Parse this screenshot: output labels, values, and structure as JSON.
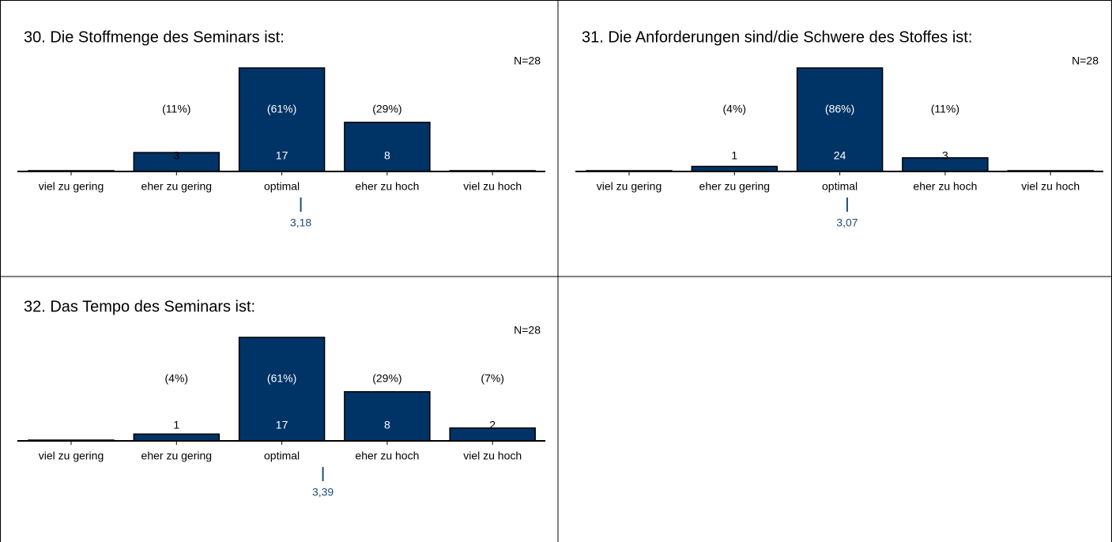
{
  "chart_data": [
    {
      "type": "bar",
      "title": "30. Die Stoffmenge des Seminars ist:",
      "annotation": "N=28",
      "categories": [
        "viel zu gering",
        "eher zu gering",
        "optimal",
        "eher zu hoch",
        "viel zu hoch"
      ],
      "values": [
        0,
        3,
        17,
        8,
        0
      ],
      "percent_labels": [
        null,
        "(11%)",
        "(61%)",
        "(29%)",
        null
      ],
      "mean": 3.18,
      "mean_label": "3,18",
      "ylim": [
        0,
        17
      ],
      "color": "#003366",
      "mean_color": "#1f4e79"
    },
    {
      "type": "bar",
      "title": "31. Die Anforderungen sind/die Schwere des Stoffes ist:",
      "annotation": "N=28",
      "categories": [
        "viel zu gering",
        "eher zu gering",
        "optimal",
        "eher zu hoch",
        "viel zu hoch"
      ],
      "values": [
        0,
        1,
        24,
        3,
        0
      ],
      "percent_labels": [
        null,
        "(4%)",
        "(86%)",
        "(11%)",
        null
      ],
      "mean": 3.07,
      "mean_label": "3,07",
      "ylim": [
        0,
        24
      ],
      "color": "#003366",
      "mean_color": "#1f4e79"
    },
    {
      "type": "bar",
      "title": "32. Das Tempo des Seminars ist:",
      "annotation": "N=28",
      "categories": [
        "viel zu gering",
        "eher zu gering",
        "optimal",
        "eher zu hoch",
        "viel zu hoch"
      ],
      "values": [
        0,
        1,
        17,
        8,
        2
      ],
      "percent_labels": [
        null,
        "(4%)",
        "(61%)",
        "(29%)",
        "(7%)"
      ],
      "mean": 3.39,
      "mean_label": "3,39",
      "ylim": [
        0,
        17
      ],
      "color": "#003366",
      "mean_color": "#1f4e79"
    }
  ]
}
